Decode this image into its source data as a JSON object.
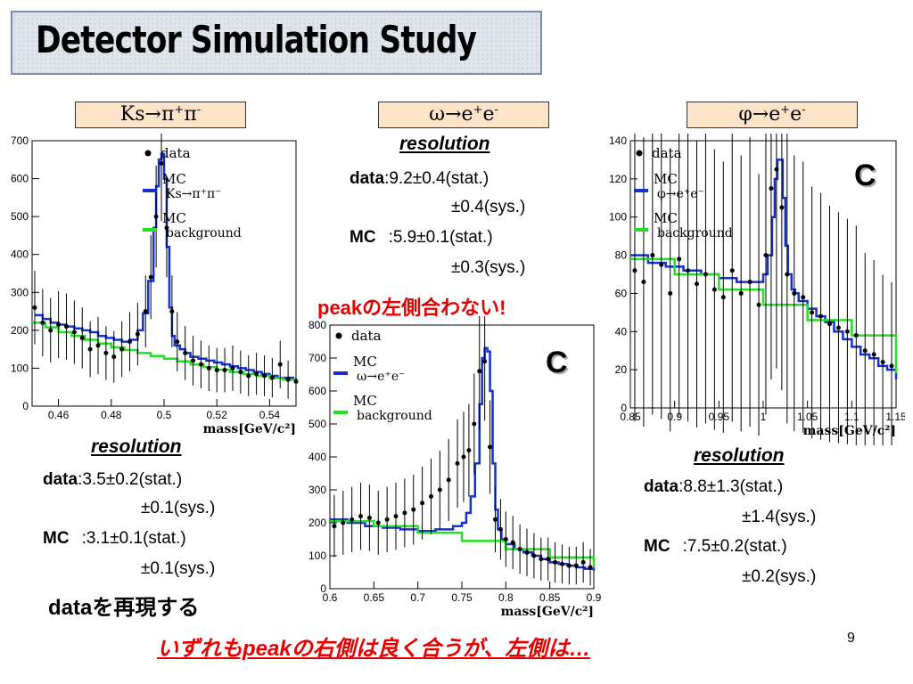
{
  "slide": {
    "title": "Detector Simulation Study",
    "page_number": "9",
    "left_label": {
      "base": "Ks→π",
      "sup1": "+",
      "mid": "π",
      "sup2": "-"
    },
    "center_label": {
      "base": "ω→e",
      "sup1": "+",
      "mid": "e",
      "sup2": "-"
    },
    "right_label": {
      "base": "φ→e",
      "sup1": "+",
      "mid": "e",
      "sup2": "-"
    },
    "res_title": "resolution",
    "center_res": {
      "data_label": "data",
      "data_val": ":9.2±0.4(stat.)",
      "data_sys": "±0.4(sys.)",
      "mc_label": "MC",
      "mc_val": ":5.9±0.1(stat.)",
      "mc_sys": "±0.3(sys.)"
    },
    "left_res": {
      "data_label": "data",
      "data_val": ":3.5±0.2(stat.)",
      "data_sys": "±0.1(sys.)",
      "mc_label": "MC",
      "mc_val": ":3.1±0.1(stat.)",
      "mc_sys": "±0.1(sys.)"
    },
    "right_res": {
      "data_label": "data",
      "data_val": ":8.8±1.3(stat.)",
      "data_sys": "±1.4(sys.)",
      "mc_label": "MC",
      "mc_val": ":7.5±0.2(stat.)",
      "mc_sys": "±0.2(sys.)"
    },
    "peak_note": "peakの左側合わない!",
    "reproduce_note": "dataを再現する",
    "bottom_note": "いずれもpeakの右側は良く合うが、左側は…",
    "c_mark": "C"
  },
  "chart_data": [
    {
      "type": "line",
      "xlabel": "mass[GeV/c²]",
      "xlim": [
        0.45,
        0.55
      ],
      "ylim": [
        0,
        700
      ],
      "xticks": [
        "0.46",
        "0.48",
        "0.5",
        "0.52",
        "0.54"
      ],
      "yticks": [
        "0",
        "100",
        "200",
        "300",
        "400",
        "500",
        "600",
        "700"
      ],
      "legend": [
        {
          "label": "data",
          "marker": "dot"
        },
        {
          "label": "MC",
          "sub": "Ks→π⁺π⁻",
          "color": "#1530d0"
        },
        {
          "label": "MC",
          "sub": "background",
          "color": "#22e022"
        }
      ],
      "series": [
        {
          "name": "MC Ks→π⁺π⁻",
          "color": "#1530d0",
          "x": [
            0.451,
            0.454,
            0.457,
            0.46,
            0.463,
            0.466,
            0.469,
            0.472,
            0.475,
            0.478,
            0.481,
            0.484,
            0.487,
            0.49,
            0.492,
            0.494,
            0.496,
            0.497,
            0.498,
            0.499,
            0.5,
            0.501,
            0.502,
            0.503,
            0.504,
            0.506,
            0.508,
            0.51,
            0.513,
            0.516,
            0.519,
            0.522,
            0.525,
            0.528,
            0.531,
            0.534,
            0.537,
            0.54,
            0.543,
            0.546,
            0.549
          ],
          "y": [
            240,
            230,
            220,
            215,
            210,
            205,
            200,
            195,
            185,
            180,
            175,
            170,
            175,
            200,
            245,
            330,
            470,
            580,
            650,
            665,
            600,
            420,
            260,
            185,
            160,
            150,
            140,
            130,
            125,
            120,
            115,
            110,
            105,
            100,
            95,
            90,
            85,
            80,
            75,
            75,
            70
          ]
        },
        {
          "name": "MC background",
          "color": "#22e022",
          "x": [
            0.45,
            0.455,
            0.46,
            0.465,
            0.47,
            0.475,
            0.48,
            0.485,
            0.49,
            0.495,
            0.5,
            0.505,
            0.51,
            0.515,
            0.52,
            0.525,
            0.53,
            0.535,
            0.54,
            0.545,
            0.55
          ],
          "y": [
            220,
            208,
            195,
            185,
            175,
            165,
            155,
            148,
            140,
            132,
            125,
            118,
            110,
            103,
            96,
            90,
            85,
            80,
            74,
            70,
            65
          ]
        },
        {
          "name": "data",
          "x": [
            0.451,
            0.454,
            0.457,
            0.46,
            0.463,
            0.466,
            0.469,
            0.472,
            0.475,
            0.478,
            0.481,
            0.484,
            0.487,
            0.49,
            0.493,
            0.495,
            0.497,
            0.499,
            0.501,
            0.503,
            0.505,
            0.508,
            0.511,
            0.514,
            0.517,
            0.52,
            0.523,
            0.526,
            0.529,
            0.532,
            0.535,
            0.538,
            0.541,
            0.544,
            0.547,
            0.55
          ],
          "y": [
            260,
            220,
            200,
            215,
            210,
            195,
            180,
            150,
            160,
            140,
            130,
            150,
            170,
            190,
            250,
            340,
            500,
            640,
            470,
            250,
            170,
            140,
            120,
            110,
            100,
            95,
            95,
            100,
            90,
            80,
            85,
            80,
            75,
            110,
            70,
            65
          ]
        }
      ]
    },
    {
      "type": "line",
      "xlabel": "mass[GeV/c²]",
      "xlim": [
        0.6,
        0.9
      ],
      "ylim": [
        0,
        800
      ],
      "xticks": [
        "0.6",
        "0.65",
        "0.7",
        "0.75",
        "0.8",
        "0.85",
        "0.9"
      ],
      "yticks": [
        "0",
        "100",
        "200",
        "300",
        "400",
        "500",
        "600",
        "700",
        "800"
      ],
      "legend": [
        {
          "label": "data",
          "marker": "dot"
        },
        {
          "label": "MC",
          "sub": "ω→e⁺e⁻",
          "color": "#1530d0"
        },
        {
          "label": "MC",
          "sub": "background",
          "color": "#22e022"
        }
      ],
      "series": [
        {
          "name": "MC ω→e⁺e⁻",
          "color": "#1530d0",
          "x": [
            0.6,
            0.62,
            0.64,
            0.66,
            0.68,
            0.7,
            0.71,
            0.72,
            0.73,
            0.74,
            0.75,
            0.755,
            0.76,
            0.765,
            0.77,
            0.773,
            0.776,
            0.779,
            0.782,
            0.785,
            0.788,
            0.791,
            0.795,
            0.8,
            0.81,
            0.82,
            0.83,
            0.84,
            0.85,
            0.86,
            0.87,
            0.88,
            0.89,
            0.9
          ],
          "y": [
            210,
            200,
            190,
            185,
            180,
            175,
            175,
            180,
            180,
            190,
            200,
            230,
            280,
            380,
            560,
            700,
            730,
            720,
            600,
            380,
            240,
            180,
            150,
            135,
            120,
            110,
            100,
            90,
            80,
            75,
            70,
            65,
            60,
            55
          ]
        },
        {
          "name": "MC background",
          "color": "#22e022",
          "x": [
            0.6,
            0.65,
            0.7,
            0.75,
            0.8,
            0.85,
            0.9
          ],
          "y": [
            205,
            190,
            170,
            145,
            120,
            95,
            70
          ]
        },
        {
          "name": "data",
          "x": [
            0.605,
            0.615,
            0.625,
            0.635,
            0.645,
            0.655,
            0.665,
            0.675,
            0.685,
            0.695,
            0.705,
            0.715,
            0.725,
            0.735,
            0.745,
            0.752,
            0.758,
            0.764,
            0.77,
            0.776,
            0.782,
            0.788,
            0.794,
            0.8,
            0.808,
            0.816,
            0.824,
            0.832,
            0.84,
            0.848,
            0.856,
            0.864,
            0.872,
            0.88,
            0.888,
            0.896
          ],
          "y": [
            190,
            200,
            210,
            220,
            215,
            200,
            210,
            220,
            230,
            240,
            260,
            280,
            300,
            330,
            380,
            400,
            420,
            500,
            660,
            690,
            430,
            210,
            180,
            150,
            140,
            120,
            110,
            100,
            90,
            90,
            80,
            75,
            70,
            70,
            80,
            65
          ]
        }
      ]
    },
    {
      "type": "line",
      "xlabel": "mass[GeV/c²]",
      "xlim": [
        0.85,
        1.15
      ],
      "ylim": [
        0,
        140
      ],
      "xticks": [
        "0.85",
        "0.9",
        "0.95",
        "1",
        "1.05",
        "1.1",
        "1.15"
      ],
      "yticks": [
        "0",
        "20",
        "40",
        "60",
        "80",
        "100",
        "120",
        "140"
      ],
      "legend": [
        {
          "label": "data",
          "marker": "dot"
        },
        {
          "label": "MC",
          "sub": "φ→e⁺e⁻",
          "color": "#1530d0"
        },
        {
          "label": "MC",
          "sub": "background",
          "color": "#22e022"
        }
      ],
      "series": [
        {
          "name": "MC φ→e⁺e⁻",
          "color": "#1530d0",
          "x": [
            0.85,
            0.87,
            0.89,
            0.91,
            0.93,
            0.95,
            0.97,
            0.99,
            1.0,
            1.005,
            1.01,
            1.013,
            1.016,
            1.019,
            1.022,
            1.025,
            1.028,
            1.032,
            1.036,
            1.04,
            1.05,
            1.06,
            1.07,
            1.08,
            1.09,
            1.1,
            1.11,
            1.12,
            1.13,
            1.14,
            1.15
          ],
          "y": [
            80,
            76,
            74,
            72,
            70,
            68,
            66,
            66,
            70,
            80,
            100,
            120,
            130,
            130,
            110,
            85,
            70,
            62,
            60,
            56,
            52,
            48,
            45,
            40,
            36,
            32,
            28,
            26,
            22,
            20,
            15
          ]
        },
        {
          "name": "MC background",
          "color": "#22e022",
          "x": [
            0.85,
            0.9,
            0.95,
            1.0,
            1.05,
            1.1,
            1.15
          ],
          "y": [
            78,
            70,
            62,
            54,
            46,
            38,
            18
          ]
        },
        {
          "name": "data",
          "x": [
            0.855,
            0.865,
            0.875,
            0.885,
            0.895,
            0.905,
            0.915,
            0.925,
            0.935,
            0.945,
            0.955,
            0.965,
            0.975,
            0.985,
            0.995,
            1.003,
            1.009,
            1.015,
            1.021,
            1.027,
            1.035,
            1.045,
            1.055,
            1.065,
            1.075,
            1.085,
            1.095,
            1.105,
            1.115,
            1.125,
            1.135,
            1.145
          ],
          "y": [
            72,
            66,
            80,
            75,
            60,
            78,
            72,
            65,
            70,
            62,
            58,
            72,
            60,
            66,
            54,
            80,
            115,
            125,
            105,
            70,
            60,
            58,
            50,
            48,
            44,
            42,
            40,
            38,
            30,
            28,
            24,
            22
          ]
        }
      ]
    }
  ]
}
